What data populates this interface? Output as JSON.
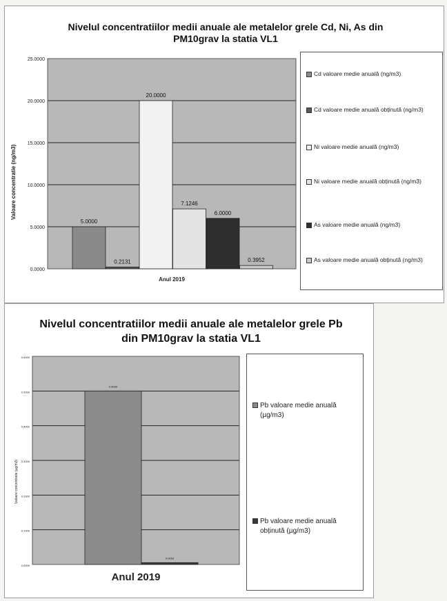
{
  "colors": {
    "plot_bg": "#b8b8b8",
    "grid": "#222222",
    "cd_avg": "#8a8a8a",
    "cd_obt": "#5a5a5a",
    "ni_avg": "#f2f2f2",
    "ni_obt": "#e4e4e4",
    "as_avg": "#2e2e2e",
    "as_obt": "#c8c8c8",
    "pb_avg": "#8c8c8c",
    "pb_obt": "#3a3a3a"
  },
  "chart_data": [
    {
      "type": "bar",
      "title": "Nivelul concentratiilor medii anuale ale metalelor grele Cd, Ni, As din PM10grav la statia VL1",
      "xlabel": "Anul 2019",
      "ylabel": "Valoare concentratie (ng/m3)",
      "categories": [
        "Anul 2019"
      ],
      "ylim": [
        0,
        25
      ],
      "yticks": [
        "0.0000",
        "5.0000",
        "10.0000",
        "15.0000",
        "20.0000",
        "25.0000"
      ],
      "grid": true,
      "legend_position": "right",
      "series": [
        {
          "name": "Cd valoare medie anuală (ng/m3)",
          "values": [
            5.0
          ],
          "label": "5.0000",
          "color_key": "cd_avg"
        },
        {
          "name": "Cd valoare medie anuală obținută (ng/m3)",
          "values": [
            0.2131
          ],
          "label": "0.2131",
          "color_key": "cd_obt"
        },
        {
          "name": "Ni valoare medie anuală (ng/m3)",
          "values": [
            20.0
          ],
          "label": "20.0000",
          "color_key": "ni_avg"
        },
        {
          "name": "Ni valoare medie anuală obținută (ng/m3)",
          "values": [
            7.1246
          ],
          "label": "7.1246",
          "color_key": "ni_obt"
        },
        {
          "name": "As valoare medie anuală (ng/m3)",
          "values": [
            6.0
          ],
          "label": "6.0000",
          "color_key": "as_avg"
        },
        {
          "name": "As valoare medie anuală obținută (ng/m3)",
          "values": [
            0.3952
          ],
          "label": "0.3952",
          "color_key": "as_obt"
        }
      ]
    },
    {
      "type": "bar",
      "title": "Nivelul concentratiilor medii anuale ale metalelor grele Pb din PM10grav la statia VL1",
      "xlabel": "Anul 2019",
      "ylabel": "Valoare concentratie (µg/m3)",
      "categories": [
        "Anul 2019"
      ],
      "ylim": [
        0,
        0.6
      ],
      "yticks": [
        "0.0000",
        "0.1000",
        "0.2000",
        "0.3000",
        "0.4000",
        "0.5000",
        "0.6000"
      ],
      "grid": true,
      "legend_position": "right",
      "series": [
        {
          "name": "Pb valoare medie anuală (µg/m3)",
          "values": [
            0.5
          ],
          "label": "0.5000",
          "color_key": "pb_avg"
        },
        {
          "name": "Pb valoare medie anuală obținută (µg/m3)",
          "values": [
            0.0053
          ],
          "label": "0.0053",
          "color_key": "pb_obt"
        }
      ]
    }
  ]
}
